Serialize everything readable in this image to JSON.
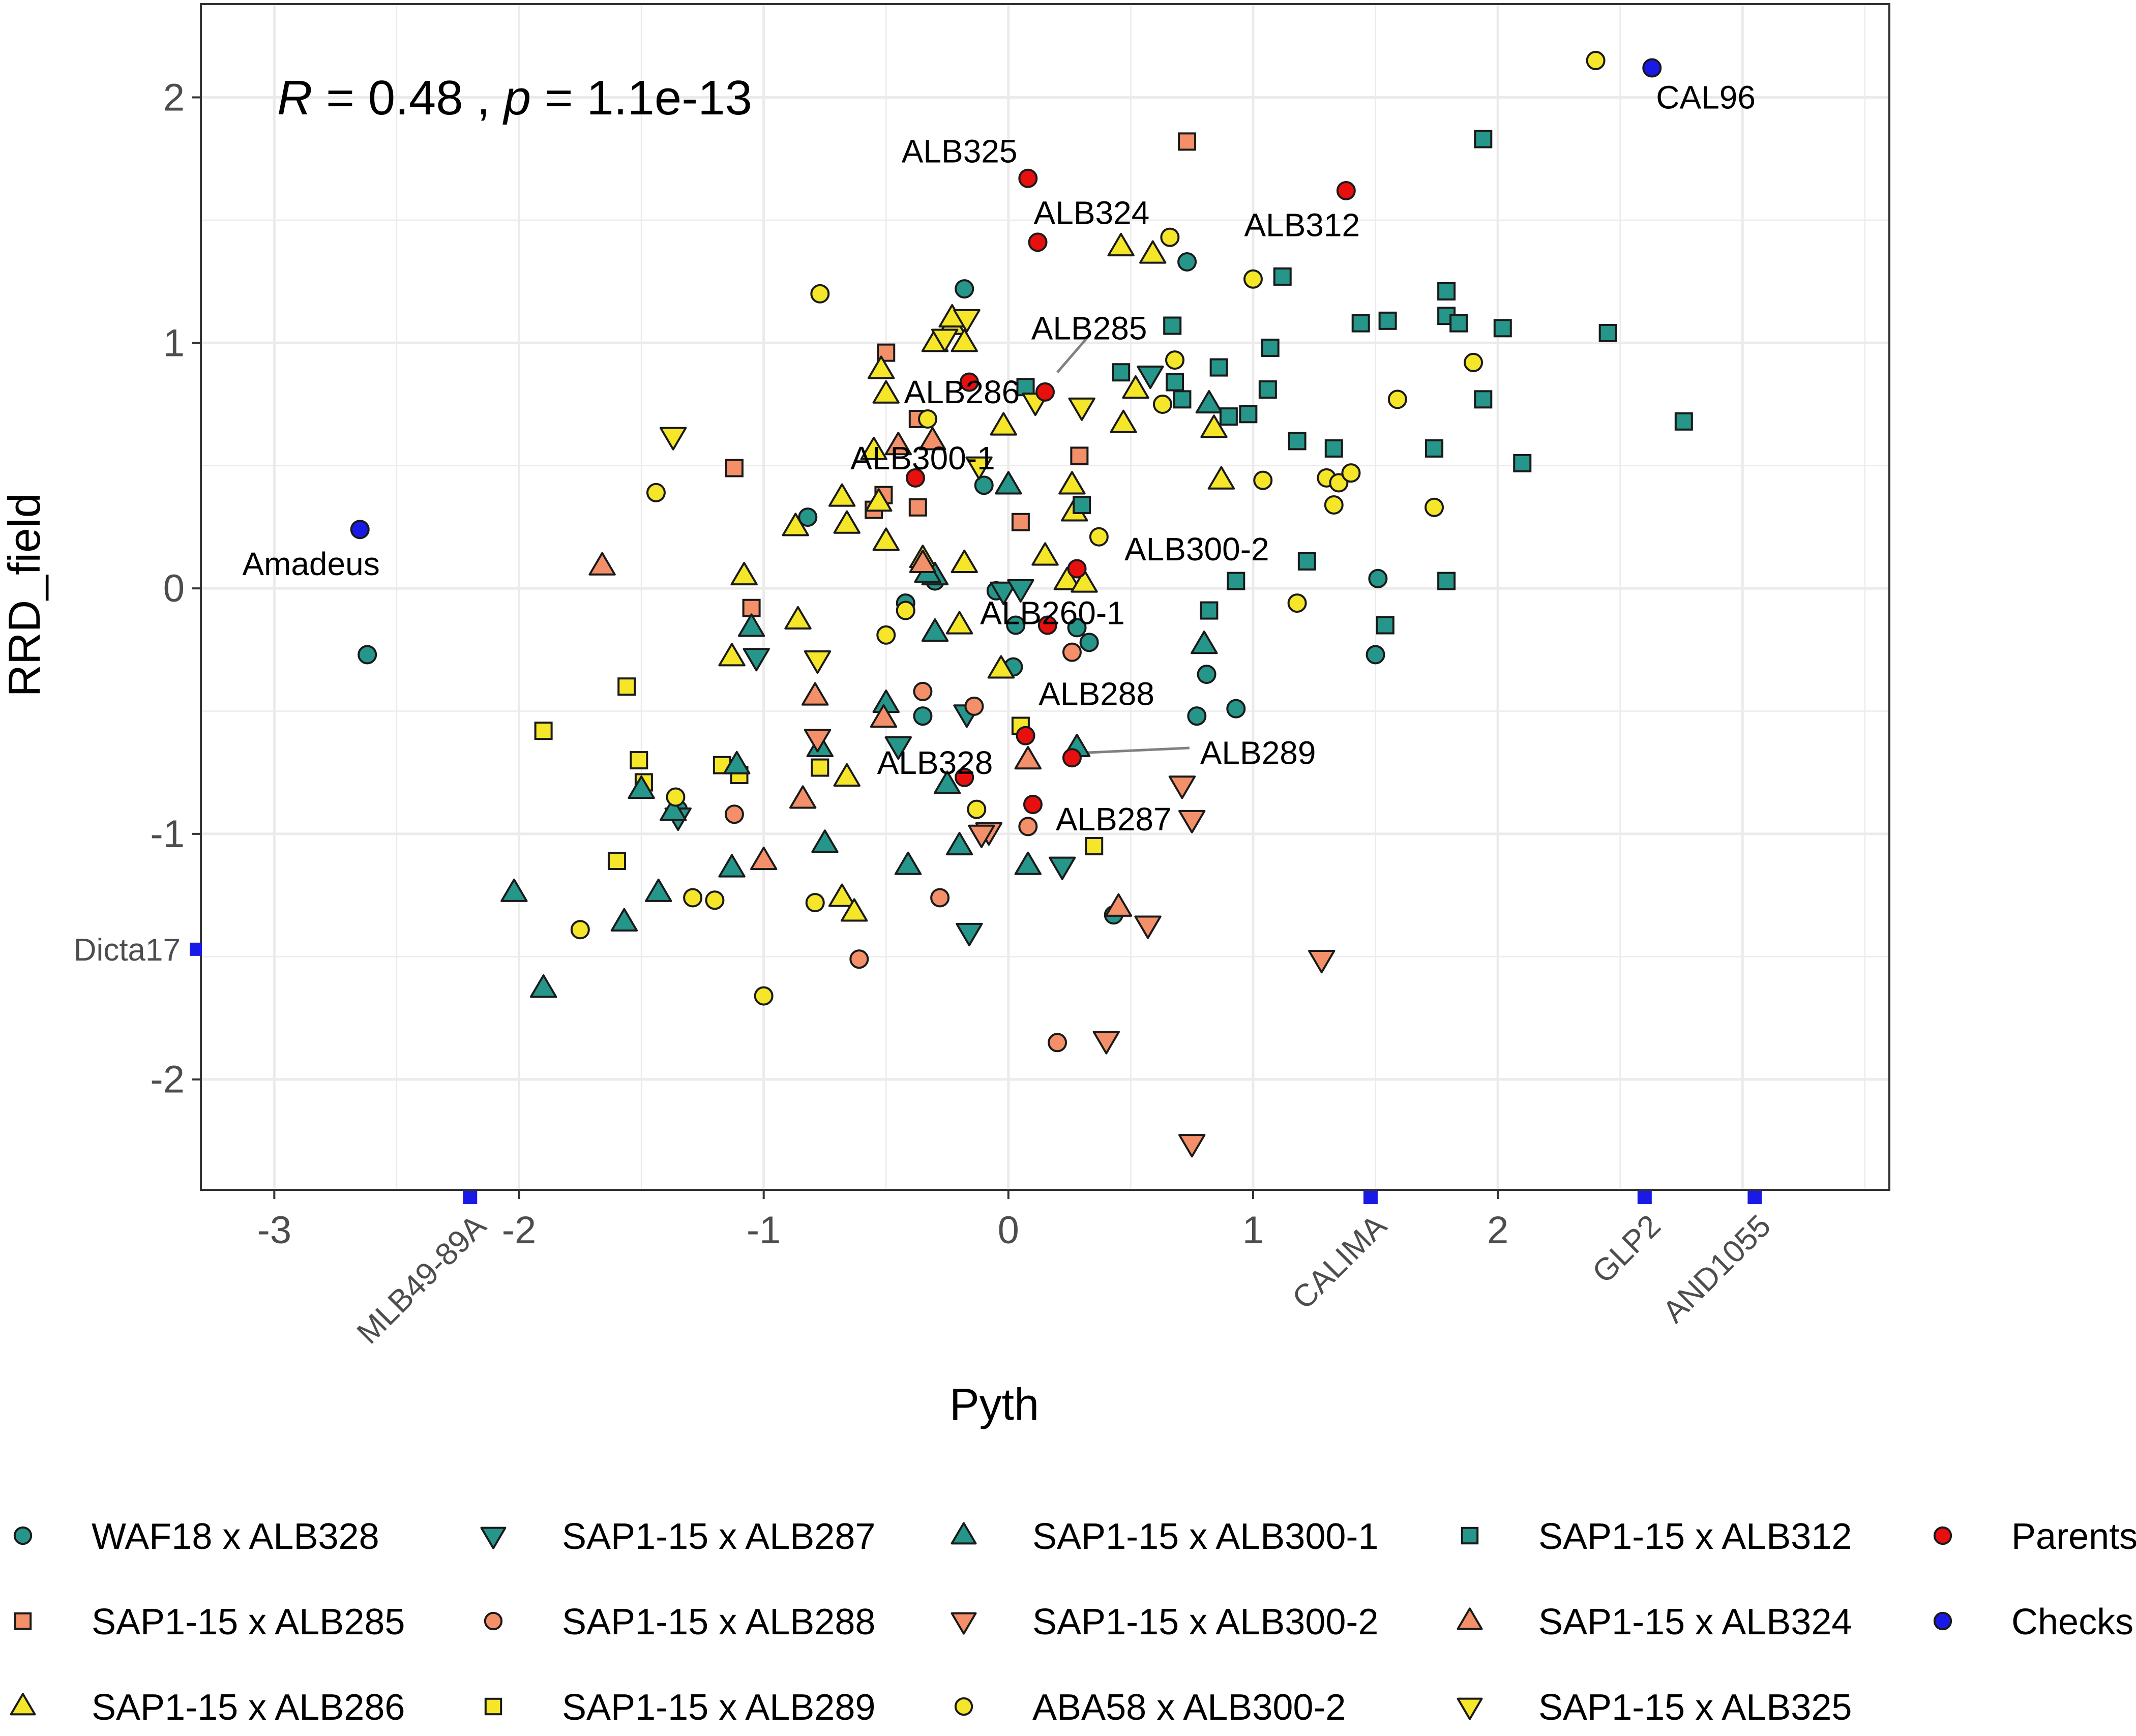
{
  "chart_data": {
    "type": "scatter",
    "xlabel": "Pyth",
    "ylabel": "RRD_field",
    "xlim": [
      -3.3,
      3.6
    ],
    "ylim": [
      -2.45,
      2.38
    ],
    "x_ticks": [
      -3,
      -2,
      -1,
      0,
      1,
      2
    ],
    "x_tick_labels": [
      "-3",
      "-2",
      "-1",
      "0",
      "1",
      "2"
    ],
    "y_ticks": [
      -2,
      -1,
      0,
      1,
      2
    ],
    "y_tick_labels": [
      "-2",
      "-1",
      "0",
      "1",
      "2"
    ],
    "grid": true,
    "annotation": {
      "r_symbol": "R",
      "r_text": " = 0.48 , ",
      "p_symbol": "p",
      "p_text": " = 1.1e-13"
    },
    "styles": {
      "teal": "#26958a",
      "orange": "#f3906a",
      "yellow": "#f5e62a",
      "red": "#e80f0f",
      "blue": "#1a1ae6"
    },
    "series": [
      {
        "name": "WAF18 x ALB328",
        "shape": "circle",
        "color": "#26958a",
        "points": [
          [
            -2.62,
            -0.27
          ],
          [
            -0.82,
            0.29
          ],
          [
            -0.18,
            1.22
          ],
          [
            -0.1,
            0.42
          ],
          [
            -0.05,
            -0.01
          ],
          [
            0.02,
            -0.32
          ],
          [
            0.03,
            -0.15
          ],
          [
            0.28,
            -0.16
          ],
          [
            0.33,
            -0.22
          ],
          [
            0.73,
            1.33
          ],
          [
            0.77,
            -0.52
          ],
          [
            0.81,
            -0.35
          ],
          [
            0.93,
            -0.49
          ],
          [
            1.51,
            0.04
          ],
          [
            1.5,
            -0.27
          ],
          [
            -0.42,
            -0.06
          ],
          [
            -0.35,
            -0.52
          ],
          [
            0.43,
            -1.33
          ],
          [
            -1.35,
            -0.9
          ],
          [
            -0.3,
            0.03
          ]
        ]
      },
      {
        "name": "SAP1-15 x ALB285",
        "shape": "square",
        "color": "#f3906a",
        "points": [
          [
            -1.12,
            0.49
          ],
          [
            -1.05,
            -0.08
          ],
          [
            -0.5,
            0.96
          ],
          [
            -0.51,
            0.38
          ],
          [
            -0.37,
            0.69
          ],
          [
            -0.37,
            0.33
          ],
          [
            0.05,
            0.27
          ],
          [
            0.29,
            0.54
          ],
          [
            0.73,
            1.82
          ],
          [
            -0.55,
            0.32
          ]
        ]
      },
      {
        "name": "SAP1-15 x ALB286",
        "shape": "triangle-up",
        "color": "#f5e62a",
        "points": [
          [
            -0.52,
            0.89
          ],
          [
            -0.5,
            0.79
          ],
          [
            -0.55,
            0.56
          ],
          [
            -0.87,
            0.25
          ],
          [
            -1.08,
            0.05
          ],
          [
            -0.86,
            -0.13
          ],
          [
            -1.13,
            -0.28
          ],
          [
            -0.68,
            0.37
          ],
          [
            -0.66,
            0.26
          ],
          [
            -0.5,
            0.19
          ],
          [
            -0.35,
            0.12
          ],
          [
            -0.18,
            0.1
          ],
          [
            -0.02,
            0.66
          ],
          [
            0.26,
            0.42
          ],
          [
            0.27,
            0.31
          ],
          [
            0.15,
            0.13
          ],
          [
            0.24,
            0.03
          ],
          [
            0.31,
            0.02
          ],
          [
            0.46,
            1.39
          ],
          [
            0.59,
            1.36
          ],
          [
            0.47,
            0.67
          ],
          [
            0.52,
            0.81
          ],
          [
            0.84,
            0.65
          ],
          [
            0.87,
            0.44
          ],
          [
            -0.2,
            -0.15
          ],
          [
            -0.03,
            -0.33
          ],
          [
            -0.66,
            -0.77
          ],
          [
            -0.68,
            -1.26
          ],
          [
            -0.63,
            -1.32
          ],
          [
            -0.53,
            0.35
          ],
          [
            -0.3,
            1.0
          ],
          [
            -0.23,
            1.07
          ],
          [
            -0.18,
            1.0
          ],
          [
            -0.23,
            1.1
          ]
        ]
      },
      {
        "name": "SAP1-15 x ALB287",
        "shape": "triangle-down",
        "color": "#26958a",
        "points": [
          [
            -1.03,
            -0.28
          ],
          [
            -1.35,
            -0.93
          ],
          [
            -0.45,
            -0.64
          ],
          [
            -0.17,
            -0.51
          ],
          [
            0.22,
            -1.13
          ],
          [
            -0.16,
            -1.4
          ],
          [
            0.58,
            0.87
          ],
          [
            -0.02,
            -0.01
          ],
          [
            0.05,
            0.0
          ]
        ]
      },
      {
        "name": "SAP1-15 x ALB288",
        "shape": "circle",
        "color": "#f3906a",
        "points": [
          [
            -1.12,
            -0.92
          ],
          [
            -0.35,
            -0.42
          ],
          [
            -0.14,
            -0.48
          ],
          [
            -0.28,
            -1.26
          ],
          [
            0.26,
            -0.26
          ],
          [
            -0.61,
            -1.51
          ],
          [
            0.08,
            -0.97
          ],
          [
            0.2,
            -1.85
          ]
        ]
      },
      {
        "name": "SAP1-15 x ALB289",
        "shape": "square",
        "color": "#f5e62a",
        "points": [
          [
            -1.9,
            -0.58
          ],
          [
            -1.56,
            -0.4
          ],
          [
            -1.51,
            -0.7
          ],
          [
            -1.49,
            -0.79
          ],
          [
            -1.6,
            -1.11
          ],
          [
            -1.17,
            -0.72
          ],
          [
            -1.1,
            -0.76
          ],
          [
            -0.77,
            -0.73
          ],
          [
            0.05,
            -0.56
          ],
          [
            0.35,
            -1.05
          ]
        ]
      },
      {
        "name": "SAP1-15 x ALB300-1",
        "shape": "triangle-up",
        "color": "#26958a",
        "points": [
          [
            -2.02,
            -1.24
          ],
          [
            -1.9,
            -1.63
          ],
          [
            -1.57,
            -1.36
          ],
          [
            -1.43,
            -1.24
          ],
          [
            -1.5,
            -0.82
          ],
          [
            -1.37,
            -0.91
          ],
          [
            -1.13,
            -1.14
          ],
          [
            -1.11,
            -0.72
          ],
          [
            -1.05,
            -0.16
          ],
          [
            -0.77,
            -0.65
          ],
          [
            -0.75,
            -1.04
          ],
          [
            -0.41,
            -1.13
          ],
          [
            -0.5,
            -0.47
          ],
          [
            -0.3,
            -0.18
          ],
          [
            -0.3,
            0.05
          ],
          [
            -0.25,
            -0.8
          ],
          [
            -0.2,
            -1.05
          ],
          [
            0.08,
            -1.13
          ],
          [
            0.28,
            -0.65
          ],
          [
            0.82,
            0.75
          ],
          [
            0.8,
            -0.23
          ],
          [
            0.0,
            0.42
          ],
          [
            -0.33,
            0.06
          ]
        ]
      },
      {
        "name": "SAP1-15 x ALB300-2",
        "shape": "triangle-down",
        "color": "#f3906a",
        "points": [
          [
            -0.78,
            -0.61
          ],
          [
            -0.08,
            -0.99
          ],
          [
            0.4,
            -1.84
          ],
          [
            0.57,
            -1.37
          ],
          [
            0.71,
            -0.8
          ],
          [
            0.75,
            -0.94
          ],
          [
            0.75,
            -2.26
          ],
          [
            1.28,
            -1.51
          ],
          [
            -0.11,
            -1.0
          ]
        ]
      },
      {
        "name": "ABA58 x ALB300-2",
        "shape": "circle",
        "color": "#f5e62a",
        "points": [
          [
            -1.75,
            -1.39
          ],
          [
            -1.44,
            0.39
          ],
          [
            -1.36,
            -0.85
          ],
          [
            -1.29,
            -1.26
          ],
          [
            -1.2,
            -1.27
          ],
          [
            -1.0,
            -1.66
          ],
          [
            -0.79,
            -1.28
          ],
          [
            -0.77,
            1.2
          ],
          [
            -0.5,
            -0.19
          ],
          [
            -0.42,
            -0.09
          ],
          [
            -0.33,
            0.69
          ],
          [
            -0.13,
            -0.9
          ],
          [
            0.37,
            0.21
          ],
          [
            0.63,
            0.75
          ],
          [
            0.66,
            1.43
          ],
          [
            0.68,
            0.93
          ],
          [
            1.0,
            1.26
          ],
          [
            1.04,
            0.44
          ],
          [
            1.18,
            -0.06
          ],
          [
            1.3,
            0.45
          ],
          [
            1.33,
            0.34
          ],
          [
            1.35,
            0.43
          ],
          [
            1.4,
            0.47
          ],
          [
            1.59,
            0.77
          ],
          [
            1.74,
            0.33
          ],
          [
            1.9,
            0.92
          ],
          [
            2.4,
            2.15
          ]
        ]
      },
      {
        "name": "SAP1-15 x ALB312",
        "shape": "square",
        "color": "#26958a",
        "points": [
          [
            0.07,
            0.82
          ],
          [
            0.3,
            0.34
          ],
          [
            0.46,
            0.88
          ],
          [
            0.67,
            1.07
          ],
          [
            0.68,
            0.84
          ],
          [
            0.71,
            0.77
          ],
          [
            0.82,
            -0.09
          ],
          [
            0.86,
            0.9
          ],
          [
            0.9,
            0.7
          ],
          [
            0.93,
            0.03
          ],
          [
            0.98,
            0.71
          ],
          [
            1.06,
            0.81
          ],
          [
            1.07,
            0.98
          ],
          [
            1.12,
            1.27
          ],
          [
            1.18,
            0.6
          ],
          [
            1.22,
            0.11
          ],
          [
            1.33,
            0.57
          ],
          [
            1.44,
            1.08
          ],
          [
            1.54,
            -0.15
          ],
          [
            1.55,
            1.09
          ],
          [
            1.74,
            0.57
          ],
          [
            1.79,
            1.21
          ],
          [
            1.79,
            1.11
          ],
          [
            1.84,
            1.08
          ],
          [
            1.79,
            0.03
          ],
          [
            1.94,
            1.83
          ],
          [
            1.94,
            0.77
          ],
          [
            2.02,
            1.06
          ],
          [
            2.1,
            0.51
          ],
          [
            2.45,
            1.04
          ],
          [
            2.76,
            0.68
          ]
        ]
      },
      {
        "name": "SAP1-15 x ALB324",
        "shape": "triangle-up",
        "color": "#f3906a",
        "points": [
          [
            -1.66,
            0.09
          ],
          [
            -1.0,
            -1.11
          ],
          [
            -0.84,
            -0.86
          ],
          [
            -0.79,
            -0.44
          ],
          [
            -0.51,
            -0.53
          ],
          [
            -0.31,
            0.6
          ],
          [
            -0.35,
            0.1
          ],
          [
            0.08,
            -0.7
          ],
          [
            0.45,
            -1.3
          ],
          [
            -0.45,
            0.58
          ]
        ]
      },
      {
        "name": "SAP1-15 x ALB325",
        "shape": "triangle-down",
        "color": "#f5e62a",
        "points": [
          [
            -1.37,
            0.62
          ],
          [
            -0.78,
            -0.29
          ],
          [
            -0.12,
            0.5
          ],
          [
            0.11,
            0.76
          ],
          [
            0.3,
            0.74
          ],
          [
            -0.26,
            1.02
          ],
          [
            -0.17,
            1.1
          ]
        ]
      },
      {
        "name": "Parents",
        "shape": "circle",
        "color": "#e80f0f",
        "points": [
          [
            0.08,
            1.67
          ],
          [
            0.12,
            1.41
          ],
          [
            0.15,
            0.8
          ],
          [
            -0.16,
            0.84
          ],
          [
            -0.38,
            0.45
          ],
          [
            0.28,
            0.08
          ],
          [
            0.16,
            -0.15
          ],
          [
            0.07,
            -0.6
          ],
          [
            -0.18,
            -0.77
          ],
          [
            0.1,
            -0.88
          ],
          [
            0.26,
            -0.69
          ],
          [
            1.38,
            1.62
          ]
        ]
      },
      {
        "name": "Checks",
        "shape": "circle",
        "color": "#1a1ae6",
        "points": [
          [
            -2.65,
            0.24
          ],
          [
            2.63,
            2.12
          ]
        ]
      }
    ],
    "point_labels": [
      {
        "text": "ALB325",
        "at": [
          -0.2,
          1.78
        ]
      },
      {
        "text": "ALB324",
        "at": [
          0.34,
          1.53
        ]
      },
      {
        "text": "ALB312",
        "at": [
          1.2,
          1.48
        ]
      },
      {
        "text": "ALB285",
        "at": [
          0.33,
          1.06
        ]
      },
      {
        "text": "ALB286",
        "at": [
          -0.19,
          0.8
        ]
      },
      {
        "text": "ALB300-1",
        "at": [
          -0.35,
          0.53
        ]
      },
      {
        "text": "ALB300-2",
        "at": [
          0.77,
          0.16
        ]
      },
      {
        "text": "ALB260-1",
        "at": [
          0.18,
          -0.1
        ]
      },
      {
        "text": "ALB288",
        "at": [
          0.36,
          -0.43
        ]
      },
      {
        "text": "ALB289",
        "at": [
          1.02,
          -0.67
        ]
      },
      {
        "text": "ALB328",
        "at": [
          -0.3,
          -0.71
        ]
      },
      {
        "text": "ALB287",
        "at": [
          0.43,
          -0.94
        ]
      },
      {
        "text": "Amadeus",
        "at": [
          -2.85,
          0.1
        ]
      },
      {
        "text": "CAL96",
        "at": [
          2.85,
          2.0
        ]
      }
    ],
    "leader_lines": [
      {
        "from": [
          0.2,
          0.88
        ],
        "to": [
          0.33,
          1.03
        ]
      },
      {
        "from": [
          0.3,
          -0.67
        ],
        "to": [
          0.74,
          -0.65
        ]
      }
    ],
    "check_ticks_x": [
      {
        "text": "MLB49-89A",
        "x": -2.2
      },
      {
        "text": "CALIMA",
        "x": 1.48
      },
      {
        "text": "GLP2",
        "x": 2.6
      },
      {
        "text": "AND1055",
        "x": 3.05
      }
    ],
    "check_ticks_y": [
      {
        "text": "Dicta17",
        "y": -1.47
      }
    ]
  }
}
